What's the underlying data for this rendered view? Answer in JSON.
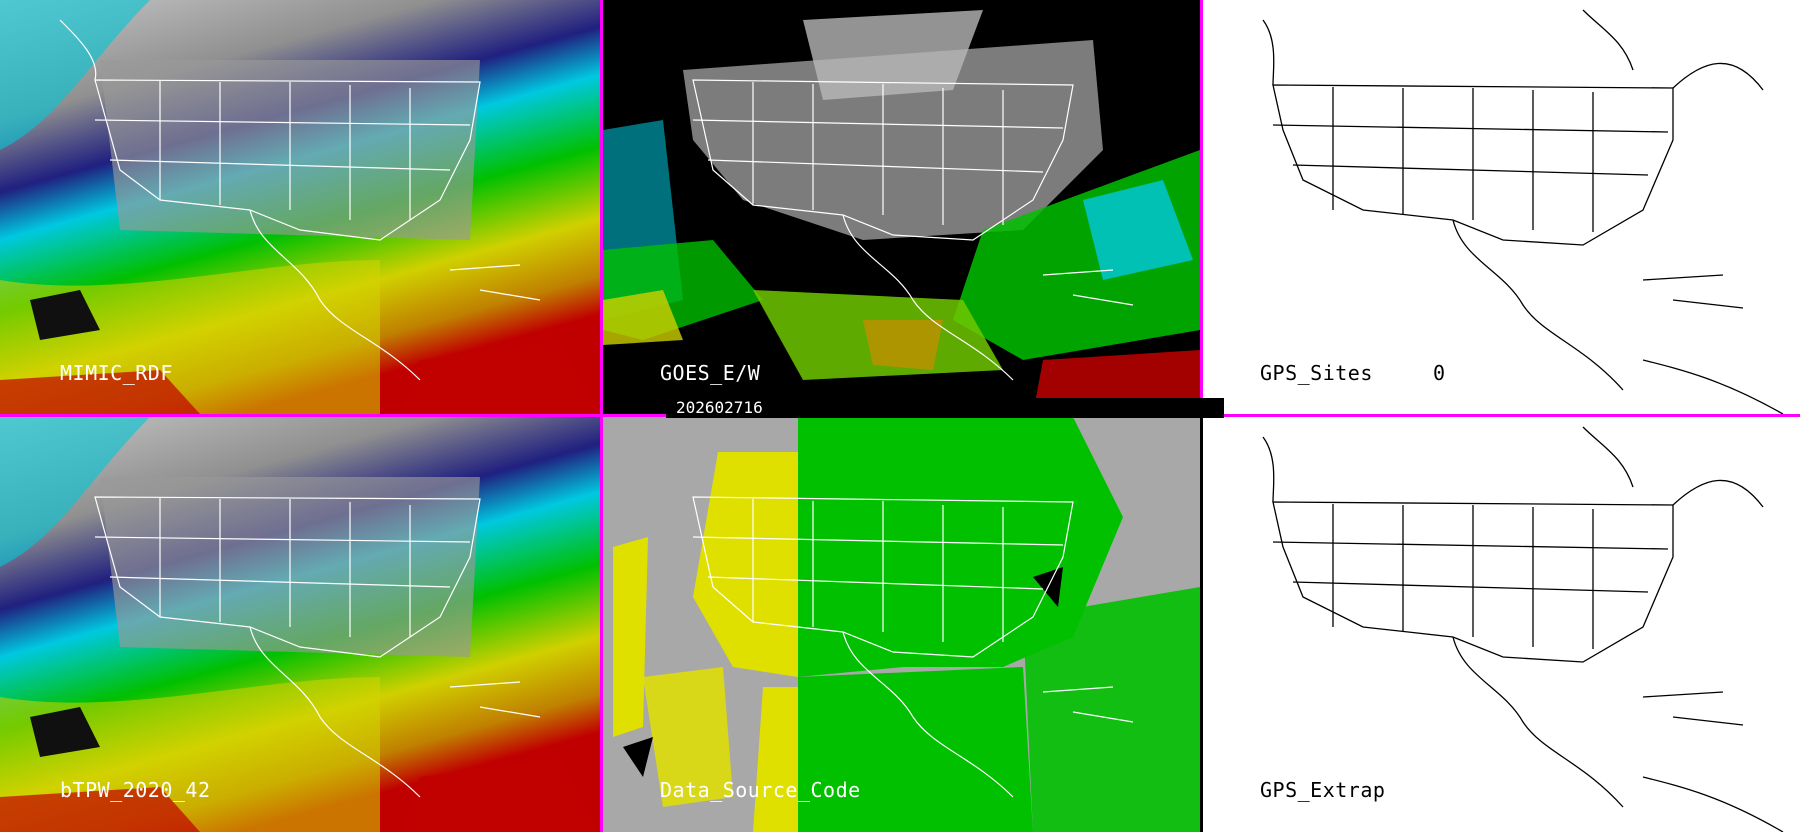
{
  "panels": {
    "mimic": {
      "label": "MIMIC_RDF"
    },
    "goes": {
      "label": "GOES_E/W"
    },
    "gps_sites": {
      "label": "GPS_Sites",
      "count": "0"
    },
    "btpw": {
      "label": "bTPW_2020_42"
    },
    "data_source": {
      "label": "Data_Source_Code"
    },
    "gps_extrap": {
      "label": "GPS_Extrap"
    }
  },
  "timestamp": "202602716",
  "colors": {
    "divider": "#ff00ff",
    "tpw_scale": [
      "#1a1a1a",
      "#7a7a7a",
      "#d0d0d0",
      "#000080",
      "#0030d0",
      "#00d0e0",
      "#00c000",
      "#80e000",
      "#e0e000",
      "#c08000",
      "#c00000"
    ],
    "source_yellow": "#e0e000",
    "source_green": "#00c000",
    "source_gray": "#a8a8a8"
  }
}
